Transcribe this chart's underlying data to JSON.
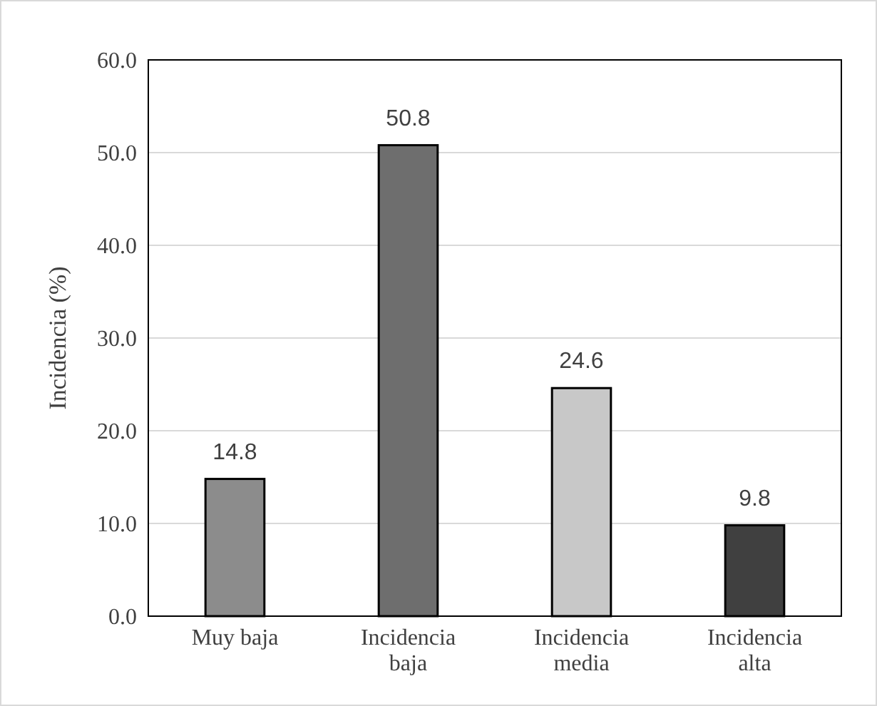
{
  "chart_data": {
    "type": "bar",
    "ylabel": "Incidencia (%)",
    "categories": [
      "Muy baja",
      "Incidencia baja",
      "Incidencia media",
      "Incidencia alta"
    ],
    "values": [
      14.8,
      50.8,
      24.6,
      9.8
    ],
    "colors": [
      "#8c8c8c",
      "#6e6e6e",
      "#c8c8c8",
      "#404040"
    ],
    "ylim": [
      0,
      60
    ],
    "yticks": [
      {
        "value": 0,
        "label": "0.0"
      },
      {
        "value": 10,
        "label": "10.0"
      },
      {
        "value": 20,
        "label": "20.0"
      },
      {
        "value": 30,
        "label": "30.0"
      },
      {
        "value": 40,
        "label": "40.0"
      },
      {
        "value": 50,
        "label": "50.0"
      },
      {
        "value": 60,
        "label": "60.0"
      }
    ],
    "grid": "y",
    "data_labels": true
  }
}
